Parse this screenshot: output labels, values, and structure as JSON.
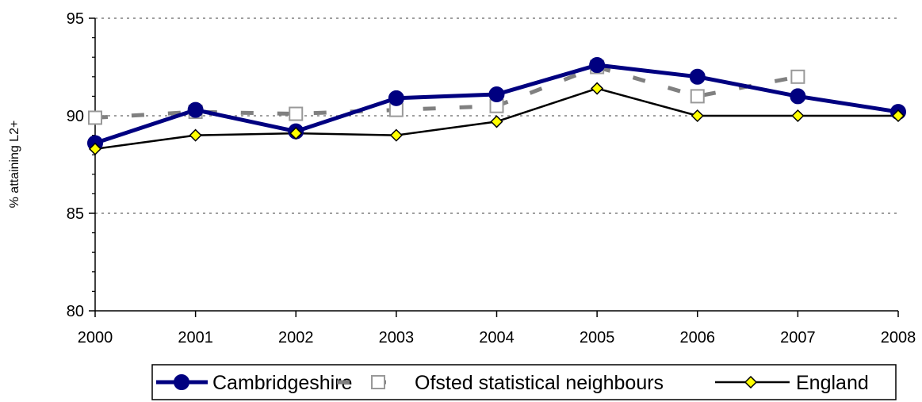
{
  "chart_data": {
    "type": "line",
    "categories": [
      "2000",
      "2001",
      "2002",
      "2003",
      "2004",
      "2005",
      "2006",
      "2007",
      "2008"
    ],
    "ylabel": "% attaining L2+",
    "xlabel": "",
    "ylim": [
      80,
      95
    ],
    "yticks": [
      "80",
      "85",
      "90",
      "95"
    ],
    "grid": "horizontal dotted at 85, 90, 95",
    "legend_position": "bottom",
    "series": [
      {
        "name": "Cambridgeshire",
        "color": "#000080",
        "marker": "circle",
        "values": [
          88.6,
          90.3,
          89.2,
          90.9,
          91.1,
          92.6,
          92.0,
          91.0,
          90.2
        ]
      },
      {
        "name": "Ofsted statistical neighbours",
        "color": "#808080",
        "marker": "hollow-square",
        "values": [
          89.9,
          90.2,
          90.1,
          90.3,
          90.5,
          92.5,
          91.0,
          92.0,
          null
        ]
      },
      {
        "name": "England",
        "color": "#000000",
        "marker": "yellow-diamond",
        "values": [
          88.3,
          89.0,
          89.1,
          89.0,
          89.7,
          91.4,
          90.0,
          90.0,
          90.0
        ]
      }
    ]
  }
}
